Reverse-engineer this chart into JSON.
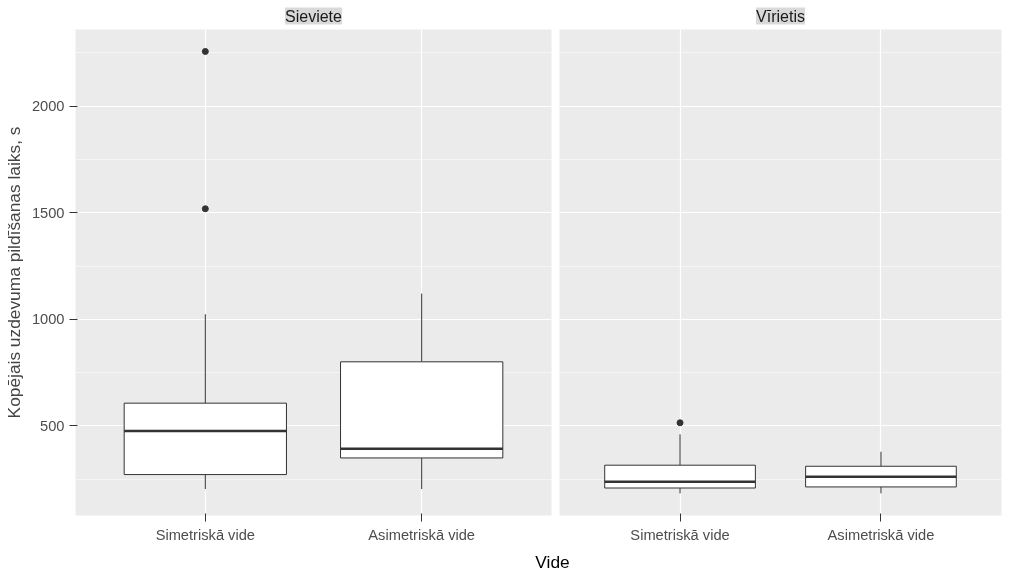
{
  "chart_data": [
    {
      "type": "box",
      "title": "Sieviete",
      "ylabel": "Kopējais uzdevuma pildīšanas laiks, s",
      "xlabel": "Vide",
      "categories": [
        "Simetriskā vide",
        "Asimetriskā vide"
      ],
      "boxes": [
        {
          "low": 204,
          "q1": 272,
          "median": 476,
          "q3": 607,
          "high": 1024,
          "outliers": [
            2257,
            1519
          ]
        },
        {
          "low": 204,
          "q1": 350,
          "median": 393,
          "q3": 801,
          "high": 1121
        }
      ],
      "ylim": [
        80,
        2360
      ],
      "yticks": [
        500,
        1000,
        1500,
        2000
      ],
      "grid": true
    },
    {
      "type": "box",
      "title": "Vīrietis",
      "categories": [
        "Simetriskā vide",
        "Asimetriskā vide"
      ],
      "boxes": [
        {
          "low": 184,
          "q1": 209,
          "median": 238,
          "q3": 316,
          "high": 461,
          "outliers": [
            515
          ]
        },
        {
          "low": 184,
          "q1": 214,
          "median": 262,
          "q3": 311,
          "high": 379
        }
      ],
      "ylim": [
        80,
        2360
      ],
      "yticks": [
        500,
        1000,
        1500,
        2000
      ],
      "grid": true,
      "tick_labels": "x"
    }
  ]
}
